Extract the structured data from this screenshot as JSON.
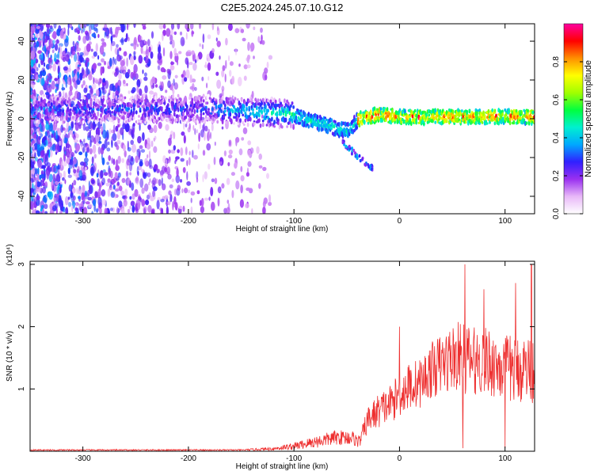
{
  "page_title": "C2E5.2024.245.07.10.G12",
  "chart_data": [
    {
      "type": "heatmap",
      "title": "C2E5.2024.245.07.10.G12",
      "xlabel": "Height of straight line (km)",
      "ylabel": "Frequency (Hz)",
      "xlim": [
        -350,
        128
      ],
      "ylim": [
        -49,
        49
      ],
      "x_ticks": [
        -300,
        -200,
        -100,
        0,
        100
      ],
      "y_ticks": [
        -40,
        -20,
        0,
        20,
        40
      ],
      "colorbar": {
        "label": "Normalized spectral amplitude",
        "range": [
          0.0,
          1.0
        ],
        "ticks": [
          0.0,
          0.2,
          0.4,
          0.6,
          0.8
        ],
        "tick_labels": [
          "0.0",
          "0.2",
          "0.4",
          "0.6",
          "0.8"
        ],
        "colors": [
          "#ffffff",
          "#e8b8f8",
          "#9a30f0",
          "#3020ff",
          "#00a8ff",
          "#00f0d0",
          "#00ff40",
          "#a0ff00",
          "#ffff00",
          "#ff9000",
          "#ff0000",
          "#ff00a0"
        ]
      },
      "dominant_frequency_curve": {
        "x": [
          -175,
          -150,
          -125,
          -100,
          -85,
          -70,
          -60,
          -50,
          -45,
          -40,
          -30,
          -20,
          0,
          20,
          40,
          60,
          80,
          100,
          128
        ],
        "y": [
          5,
          4,
          3,
          2,
          -1,
          -3,
          -5,
          -6,
          -4,
          -1,
          1,
          2,
          1,
          0.5,
          1,
          1,
          1,
          1,
          1
        ]
      }
    },
    {
      "type": "line",
      "xlabel": "Height of straight line (km)",
      "ylabel": "SNR (10 * v/v)",
      "y_multiplier": "(x10⁴)",
      "xlim": [
        -350,
        128
      ],
      "ylim": [
        0,
        3.05
      ],
      "x_ticks": [
        -300,
        -200,
        -100,
        0,
        100
      ],
      "y_ticks": [
        1,
        2,
        3
      ],
      "series": [
        {
          "color": "#ee3030",
          "envelope_x": [
            -350,
            -150,
            -120,
            -100,
            -80,
            -60,
            -45,
            -38,
            -30,
            -20,
            -10,
            0,
            10,
            20,
            30,
            40,
            50,
            60,
            70,
            80,
            90,
            100,
            110,
            120,
            128
          ],
          "envelope_mean": [
            0.02,
            0.02,
            0.04,
            0.08,
            0.15,
            0.22,
            0.22,
            0.15,
            0.5,
            0.65,
            0.75,
            0.9,
            1.05,
            1.1,
            1.3,
            1.4,
            1.5,
            1.5,
            1.45,
            1.45,
            1.4,
            1.35,
            1.3,
            1.35,
            1.3
          ],
          "envelope_spread": [
            0.01,
            0.01,
            0.03,
            0.06,
            0.1,
            0.12,
            0.12,
            0.1,
            0.22,
            0.28,
            0.3,
            0.35,
            0.4,
            0.4,
            0.45,
            0.5,
            0.55,
            0.6,
            0.55,
            0.55,
            0.55,
            0.55,
            0.55,
            0.55,
            0.55
          ],
          "peaks": [
            [
              62,
              3.0
            ],
            [
              125,
              3.0
            ],
            [
              100,
              2.8
            ],
            [
              110,
              2.7
            ],
            [
              80,
              2.6
            ],
            [
              0,
              2.0
            ],
            [
              60,
              0.05
            ],
            [
              100,
              0.05
            ]
          ]
        }
      ]
    }
  ]
}
